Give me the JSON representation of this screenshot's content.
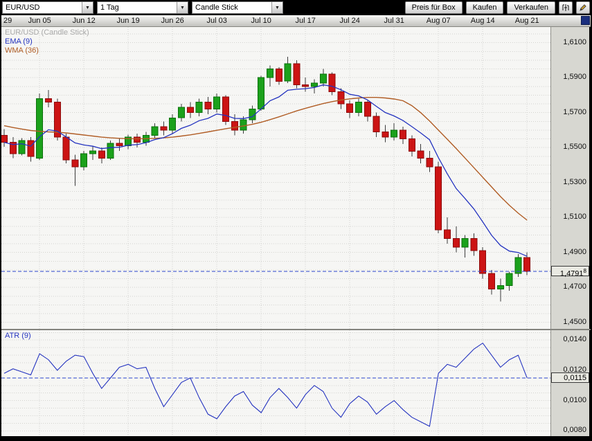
{
  "toolbar": {
    "symbol": "EUR/USD",
    "period": "1 Tag",
    "chart_type": "Candle Stick",
    "price_box": "Preis für Box",
    "buy": "Kaufen",
    "sell": "Verkaufen"
  },
  "legend": {
    "title": "EUR/USD (Candle Stick)",
    "ema": "EMA (9)",
    "wma": "WMA (36)"
  },
  "atr_panel": {
    "label": "ATR (9)"
  },
  "axis": {
    "price_ticks": [
      1.61,
      1.59,
      1.57,
      1.55,
      1.53,
      1.51,
      1.49,
      1.47,
      1.45
    ],
    "price_tick_labels": [
      "1,6100",
      "1,5900",
      "1,5700",
      "1,5500",
      "1,5300",
      "1,5100",
      "1,4900",
      "1,4700",
      "1,4500"
    ],
    "current_price": 1.47918,
    "current_price_label": "1,4791",
    "current_price_sup": "8",
    "atr_ticks": [
      0.014,
      0.012,
      0.01,
      0.008
    ],
    "atr_tick_labels": [
      "0,0140",
      "0,0120",
      "0,0100",
      "0,0080"
    ],
    "atr_current": 0.0115,
    "atr_current_label": "0,0115"
  },
  "x_axis": {
    "ticks": [
      {
        "label": "29",
        "index": -1
      },
      {
        "label": "Jun 05",
        "index": 4
      },
      {
        "label": "Jun 12",
        "index": 9
      },
      {
        "label": "Jun 19",
        "index": 14
      },
      {
        "label": "Jun 26",
        "index": 19
      },
      {
        "label": "Jul 03",
        "index": 24
      },
      {
        "label": "Jul 10",
        "index": 29
      },
      {
        "label": "Jul 17",
        "index": 34
      },
      {
        "label": "Jul 24",
        "index": 39
      },
      {
        "label": "Jul 31",
        "index": 44
      },
      {
        "label": "Aug 07",
        "index": 49
      },
      {
        "label": "Aug 14",
        "index": 54
      },
      {
        "label": "Aug 21",
        "index": 59
      }
    ]
  },
  "colors": {
    "up": "#1ba11b",
    "up_border": "#0b700b",
    "down": "#cc1414",
    "down_border": "#8c0a0a",
    "ema": "#2433c0",
    "wma": "#b05c24",
    "dash": "#2a44cc"
  },
  "chart_data": {
    "type": "candlestick",
    "title": "EUR/USD (Candle Stick)",
    "period": "1 Tag",
    "overlays": [
      "EMA (9)",
      "WMA (36)"
    ],
    "indicator": "ATR (9)",
    "y_range_main": [
      1.4463,
      1.619
    ],
    "y_range_atr": [
      0.00765,
      0.01465
    ],
    "current_price": 1.47918,
    "atr_current": 0.0115,
    "candles": [
      [
        1.557,
        1.5605,
        1.5505,
        1.553
      ],
      [
        1.553,
        1.556,
        1.544,
        1.5465
      ],
      [
        1.5465,
        1.5555,
        1.5455,
        1.554
      ],
      [
        1.554,
        1.556,
        1.542,
        1.545
      ],
      [
        1.544,
        1.581,
        1.543,
        1.578
      ],
      [
        1.578,
        1.583,
        1.573,
        1.576
      ],
      [
        1.576,
        1.578,
        1.554,
        1.556
      ],
      [
        1.556,
        1.558,
        1.541,
        1.543
      ],
      [
        1.543,
        1.546,
        1.528,
        1.539
      ],
      [
        1.539,
        1.548,
        1.537,
        1.5465
      ],
      [
        1.5465,
        1.551,
        1.543,
        1.548
      ],
      [
        1.548,
        1.55,
        1.541,
        1.544
      ],
      [
        1.544,
        1.554,
        1.543,
        1.5525
      ],
      [
        1.5525,
        1.5555,
        1.548,
        1.551
      ],
      [
        1.551,
        1.5575,
        1.549,
        1.556
      ],
      [
        1.556,
        1.558,
        1.55,
        1.553
      ],
      [
        1.553,
        1.559,
        1.551,
        1.557
      ],
      [
        1.557,
        1.564,
        1.555,
        1.562
      ],
      [
        1.562,
        1.565,
        1.557,
        1.56
      ],
      [
        1.56,
        1.569,
        1.558,
        1.567
      ],
      [
        1.567,
        1.575,
        1.565,
        1.573
      ],
      [
        1.573,
        1.576,
        1.567,
        1.57
      ],
      [
        1.57,
        1.578,
        1.568,
        1.576
      ],
      [
        1.576,
        1.579,
        1.569,
        1.572
      ],
      [
        1.572,
        1.581,
        1.57,
        1.579
      ],
      [
        1.579,
        1.58,
        1.563,
        1.565
      ],
      [
        1.565,
        1.569,
        1.557,
        1.56
      ],
      [
        1.56,
        1.568,
        1.558,
        1.566
      ],
      [
        1.566,
        1.574,
        1.564,
        1.572
      ],
      [
        1.572,
        1.591,
        1.571,
        1.59
      ],
      [
        1.59,
        1.597,
        1.585,
        1.595
      ],
      [
        1.595,
        1.596,
        1.586,
        1.588
      ],
      [
        1.588,
        1.602,
        1.587,
        1.598
      ],
      [
        1.598,
        1.6,
        1.584,
        1.586
      ],
      [
        1.586,
        1.59,
        1.582,
        1.585
      ],
      [
        1.585,
        1.589,
        1.581,
        1.587
      ],
      [
        1.587,
        1.595,
        1.585,
        1.592
      ],
      [
        1.592,
        1.593,
        1.58,
        1.582
      ],
      [
        1.582,
        1.584,
        1.572,
        1.575
      ],
      [
        1.575,
        1.577,
        1.567,
        1.57
      ],
      [
        1.57,
        1.578,
        1.568,
        1.576
      ],
      [
        1.576,
        1.577,
        1.565,
        1.568
      ],
      [
        1.568,
        1.57,
        1.556,
        1.559
      ],
      [
        1.559,
        1.563,
        1.553,
        1.556
      ],
      [
        1.556,
        1.564,
        1.554,
        1.56
      ],
      [
        1.56,
        1.562,
        1.552,
        1.555
      ],
      [
        1.555,
        1.557,
        1.545,
        1.548
      ],
      [
        1.548,
        1.552,
        1.541,
        1.544
      ],
      [
        1.544,
        1.548,
        1.536,
        1.539
      ],
      [
        1.539,
        1.542,
        1.501,
        1.503
      ],
      [
        1.503,
        1.51,
        1.495,
        1.498
      ],
      [
        1.498,
        1.505,
        1.49,
        1.493
      ],
      [
        1.493,
        1.5,
        1.487,
        1.498
      ],
      [
        1.498,
        1.501,
        1.488,
        1.491
      ],
      [
        1.491,
        1.493,
        1.475,
        1.478
      ],
      [
        1.478,
        1.48,
        1.466,
        1.469
      ],
      [
        1.469,
        1.475,
        1.462,
        1.471
      ],
      [
        1.471,
        1.479,
        1.468,
        1.478
      ],
      [
        1.478,
        1.489,
        1.476,
        1.487
      ],
      [
        1.487,
        1.49,
        1.477,
        1.4791
      ]
    ],
    "ema9": [
      1.553,
      1.5517,
      1.5522,
      1.5508,
      1.5562,
      1.5602,
      1.5594,
      1.5561,
      1.5527,
      1.5515,
      1.5508,
      1.5494,
      1.55,
      1.5502,
      1.5514,
      1.5517,
      1.5528,
      1.5546,
      1.5557,
      1.558,
      1.561,
      1.5628,
      1.5654,
      1.5667,
      1.5692,
      1.5684,
      1.5667,
      1.5666,
      1.5677,
      1.5722,
      1.5768,
      1.579,
      1.5828,
      1.5834,
      1.5837,
      1.5844,
      1.5859,
      1.5851,
      1.5831,
      1.5805,
      1.5796,
      1.5773,
      1.5736,
      1.5701,
      1.5681,
      1.5655,
      1.562,
      1.5584,
      1.5545,
      1.5442,
      1.535,
      1.5266,
      1.5209,
      1.5149,
      1.5075,
      1.4998,
      1.494,
      1.4908,
      1.49,
      1.4878
    ],
    "wma36": [
      1.5625,
      1.5615,
      1.5606,
      1.5598,
      1.5593,
      1.559,
      1.5588,
      1.5584,
      1.5578,
      1.5572,
      1.5566,
      1.556,
      1.5556,
      1.5553,
      1.5551,
      1.555,
      1.5551,
      1.5553,
      1.5556,
      1.556,
      1.5566,
      1.5573,
      1.5581,
      1.559,
      1.5599,
      1.5608,
      1.5616,
      1.5624,
      1.5633,
      1.5645,
      1.566,
      1.5676,
      1.5693,
      1.571,
      1.5725,
      1.5739,
      1.5752,
      1.5763,
      1.5772,
      1.5779,
      1.5784,
      1.5787,
      1.5787,
      1.5784,
      1.5778,
      1.5768,
      1.574,
      1.57,
      1.5652,
      1.56,
      1.5548,
      1.5495,
      1.544,
      1.5385,
      1.533,
      1.5275,
      1.522,
      1.517,
      1.5125,
      1.5085
    ],
    "atr9": [
      0.0118,
      0.0121,
      0.0119,
      0.0117,
      0.0131,
      0.0127,
      0.012,
      0.0126,
      0.013,
      0.0129,
      0.0118,
      0.0108,
      0.0115,
      0.0122,
      0.0124,
      0.0121,
      0.0122,
      0.0108,
      0.0096,
      0.0104,
      0.0112,
      0.0115,
      0.0102,
      0.0091,
      0.0088,
      0.0096,
      0.0103,
      0.0106,
      0.0097,
      0.0092,
      0.0102,
      0.0108,
      0.0102,
      0.0095,
      0.0104,
      0.011,
      0.0106,
      0.0095,
      0.0089,
      0.0098,
      0.0103,
      0.0099,
      0.0091,
      0.0096,
      0.01,
      0.0094,
      0.0089,
      0.0086,
      0.0083,
      0.0118,
      0.0124,
      0.0122,
      0.0128,
      0.0134,
      0.0138,
      0.013,
      0.0122,
      0.0127,
      0.013,
      0.0115
    ]
  }
}
